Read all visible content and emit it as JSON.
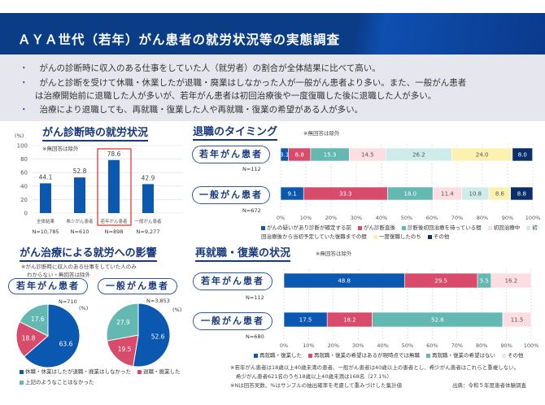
{
  "header": {
    "title": "ＡＹＡ世代（若年）がん患者の就労状況等の実態調査"
  },
  "summary": {
    "bullet_char": "・",
    "bullets": [
      "がんの診断時に収入のある仕事をしていた人（就労者）の割合が全体結果に比べて高い。",
      "がんと診断を受けて休職・休業したが退職・廃業はしなかった人が一般がん患者より多い。また、一般がん患者",
      "治療により退職しても、再就職・復業した人や再就職・復業の希望がある人が多い。"
    ],
    "bullet2_cont": "は治療開始前に退職した人が多いが、若年がん患者は初回治療後や一度復職した後に退職した人が多い。"
  },
  "colors": {
    "blue": "#0b58b0",
    "red": "#d94b6b",
    "teal": "#63b8b2",
    "pink": "#fbdde2",
    "cyan": "#cfeceb",
    "yellow": "#fbf2b2",
    "navy": "#0b2f6b",
    "highlight": "#e53935"
  },
  "chart_data": [
    {
      "type": "bar",
      "title": "がん診断時の就労状況",
      "ylabel": "(%)",
      "note": "※無回答は除外",
      "categories": [
        "全体結果",
        "希少がん患者",
        "若年がん患者",
        "一般がん患者"
      ],
      "n_labels": [
        "N=10,785",
        "N=610",
        "N=898",
        "N=9,277"
      ],
      "values": [
        44.1,
        52.8,
        78.6,
        42.9
      ],
      "highlighted": "若年がん患者",
      "ylim": [
        0,
        100
      ],
      "yticks": [
        0,
        20,
        40,
        60,
        80,
        100
      ],
      "grid": true
    },
    {
      "type": "bar",
      "orientation": "horizontal-stacked-100",
      "title": "退職のタイミング",
      "note": "※無回答は除外",
      "categories": [
        "若年がん患者",
        "一般がん患者"
      ],
      "n_labels": [
        "N=112",
        "N=672"
      ],
      "xticks": [
        "0%",
        "10%",
        "20%",
        "30%",
        "40%",
        "50%",
        "60%",
        "70%",
        "80%",
        "90%",
        "100%"
      ],
      "series": [
        {
          "name": "がんの疑いがあり診断が確定する前",
          "color": "#0b58b0",
          "values": [
            3.1,
            9.1
          ]
        },
        {
          "name": "がん診断直後",
          "color": "#d94b6b",
          "values": [
            8.8,
            33.3
          ]
        },
        {
          "name": "診断後初回治療を待っている間",
          "color": "#63b8b2",
          "values": [
            15.3,
            18.0
          ]
        },
        {
          "name": "初回治療中",
          "color": "#fbdde2",
          "values": [
            14.5,
            11.4
          ]
        },
        {
          "name": "初回治療後から当初予定していた復職までの間",
          "color": "#cfeceb",
          "values": [
            26.2,
            10.8
          ]
        },
        {
          "name": "一度復職したのち",
          "color": "#fbf2b2",
          "values": [
            24.0,
            8.6
          ]
        },
        {
          "name": "その他",
          "color": "#0b2f6b",
          "values": [
            8.0,
            8.8
          ]
        }
      ],
      "legend": "bottom"
    },
    {
      "type": "pie",
      "title": "がん治療による就労への影響",
      "notes": [
        "※がん診断時に収入のある仕事をしていた人のみ",
        "わからない・無回答は除外"
      ],
      "unit": "(%)",
      "pies": [
        {
          "label": "若年がん患者",
          "n": "N=710",
          "values": [
            63.6,
            18.8,
            17.6
          ]
        },
        {
          "label": "一般がん患者",
          "n": "N=3,853",
          "values": [
            52.6,
            19.5,
            27.9
          ]
        }
      ],
      "slices": [
        {
          "name": "休職・休業はしたが退職・廃業はしなかった",
          "color": "#0b58b0"
        },
        {
          "name": "退職・廃業した",
          "color": "#d94b6b"
        },
        {
          "name": "上記のようなことはなかった",
          "color": "#63b8b2"
        }
      ],
      "legend": "bottom"
    },
    {
      "type": "bar",
      "orientation": "horizontal-stacked-100",
      "title": "再就職・復業の状況",
      "note": "※無回答は除外",
      "categories": [
        "若年がん患者",
        "一般がん患者"
      ],
      "n_labels": [
        "N=112",
        "N=680"
      ],
      "xticks": [
        "0%",
        "10%",
        "20%",
        "30%",
        "40%",
        "50%",
        "60%",
        "70%",
        "80%",
        "90%",
        "100%"
      ],
      "series": [
        {
          "name": "再就職・復業した",
          "color": "#0b58b0",
          "values": [
            48.8,
            17.5
          ]
        },
        {
          "name": "再就職・復業の希望はあるが現時点では無職",
          "color": "#d94b6b",
          "values": [
            29.5,
            18.2
          ]
        },
        {
          "name": "再就職・復業の希望はない",
          "color": "#63b8b2",
          "values": [
            5.5,
            52.8
          ]
        },
        {
          "name": "その他",
          "color": "#fbdde2",
          "values": [
            16.2,
            11.5
          ]
        }
      ],
      "legend": "bottom"
    }
  ],
  "footnotes": [
    "※若年がん患者は18歳以上40歳未満の患者、一般がん患者は40歳以上の患者とし、希少がん患者はこれらと重複しない。",
    "希少がん患者621名のうち18歳以上40歳未満は168名（27.1%）",
    "※Nは回答実数、%はサンプルの抽出確率を考慮して重みづけした集計値"
  ],
  "source": "出典：令和５年度患者体験調査"
}
